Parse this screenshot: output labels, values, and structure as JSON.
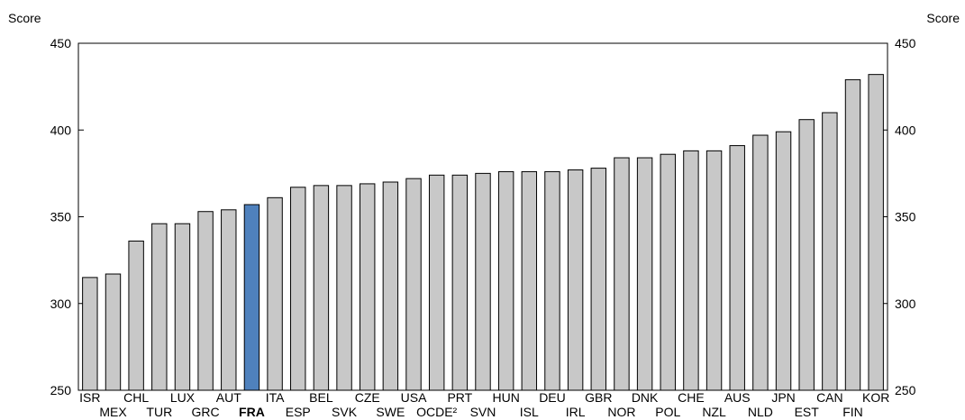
{
  "chart_data": {
    "type": "bar",
    "ylabel_left": "Score",
    "ylabel_right": "Score",
    "ylim": [
      250,
      450
    ],
    "yticks": [
      250,
      300,
      350,
      400,
      450
    ],
    "grid": false,
    "highlight_category": "FRA",
    "colors": {
      "bar": "#c8c8c8",
      "highlight": "#4f81bd",
      "stroke": "#000000"
    },
    "categories": [
      "ISR",
      "MEX",
      "CHL",
      "TUR",
      "LUX",
      "GRC",
      "AUT",
      "FRA",
      "ITA",
      "ESP",
      "BEL",
      "SVK",
      "CZE",
      "SWE",
      "USA",
      "OCDE²",
      "PRT",
      "SVN",
      "HUN",
      "ISL",
      "DEU",
      "IRL",
      "GBR",
      "NOR",
      "DNK",
      "POL",
      "CHE",
      "NZL",
      "AUS",
      "NLD",
      "JPN",
      "EST",
      "CAN",
      "FIN",
      "KOR"
    ],
    "values": [
      315,
      317,
      336,
      346,
      346,
      353,
      354,
      357,
      361,
      367,
      368,
      368,
      369,
      370,
      372,
      374,
      374,
      375,
      376,
      376,
      376,
      377,
      378,
      384,
      384,
      386,
      388,
      388,
      391,
      397,
      399,
      406,
      410,
      429,
      432
    ]
  }
}
